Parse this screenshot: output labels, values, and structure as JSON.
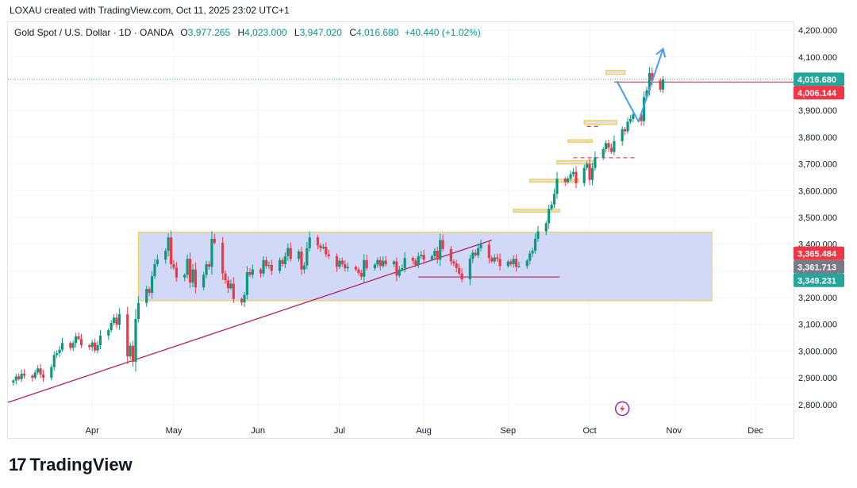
{
  "header": {
    "credit": "LOXAU created with TradingView.com, Oct 11, 2025 23:02 UTC+1"
  },
  "legend": {
    "symbol": "Gold Spot / U.S. Dollar · 1D · OANDA",
    "o_label": "O",
    "o_value": "3,977.265",
    "h_label": "H",
    "h_value": "4,023.000",
    "l_label": "L",
    "l_value": "3,947.020",
    "c_label": "C",
    "c_value": "4,016.680",
    "change": "+40.440 (+1.02%)"
  },
  "branding": {
    "name": "TradingView"
  },
  "colors": {
    "up": "#089981",
    "down": "#f23645",
    "zone_fill": "#c9d2f5",
    "zone_border": "#f2d15b",
    "trendline": "#b0245f",
    "projection": "#4b9bef",
    "current": "#26a69a"
  },
  "chart_data": {
    "type": "candlestick",
    "title": "Gold Spot / U.S. Dollar · 1D · OANDA",
    "xlabel": "",
    "ylabel": "",
    "ylim": [
      2740,
      4230
    ],
    "x_range": [
      "2025-03-01",
      "2025-12-15"
    ],
    "y_ticks": [
      "2,800.000",
      "2,900.000",
      "3,000.000",
      "3,100.000",
      "3,200.000",
      "3,300.000",
      "3,400.000",
      "3,500.000",
      "3,600.000",
      "3,700.000",
      "3,800.000",
      "3,900.000",
      "4,000.000",
      "4,100.000",
      "4,200.000"
    ],
    "x_ticks": [
      {
        "label": "Apr",
        "date": "2025-04-01"
      },
      {
        "label": "May",
        "date": "2025-05-01"
      },
      {
        "label": "Jun",
        "date": "2025-06-01"
      },
      {
        "label": "Jul",
        "date": "2025-07-01"
      },
      {
        "label": "Aug",
        "date": "2025-08-01"
      },
      {
        "label": "Sep",
        "date": "2025-09-01"
      },
      {
        "label": "Oct",
        "date": "2025-10-01"
      },
      {
        "label": "Nov",
        "date": "2025-11-01"
      },
      {
        "label": "Dec",
        "date": "2025-12-01"
      }
    ],
    "start_date": "2025-03-03",
    "closes": [
      2890,
      2905,
      2895,
      2915,
      2908,
      2900,
      2920,
      2935,
      2912,
      2900,
      2940,
      2985,
      2992,
      3005,
      3030,
      3012,
      3030,
      3055,
      3045,
      3022,
      3015,
      3032,
      3002,
      3022,
      3058,
      3078,
      3105,
      3125,
      3098,
      3138,
      2980,
      3020,
      2960,
      3120,
      3180,
      3232,
      3218,
      3280,
      3325,
      3342,
      3375,
      3425,
      3325,
      3312,
      3275,
      3285,
      3345,
      3256,
      3305,
      3238,
      3285,
      3325,
      3315,
      3420,
      3405,
      3290,
      3265,
      3235,
      3252,
      3195,
      3182,
      3210,
      3295,
      3285,
      3305,
      3290,
      3340,
      3318,
      3322,
      3300,
      3340,
      3325,
      3355,
      3385,
      3345,
      3372,
      3305,
      3320,
      3385,
      3425,
      3395,
      3385,
      3390,
      3362,
      3355,
      3315,
      3338,
      3325,
      3310,
      3315,
      3305,
      3292,
      3278,
      3340,
      3310,
      3324,
      3340,
      3318,
      3338,
      3325,
      3335,
      3282,
      3305,
      3310,
      3348,
      3338,
      3322,
      3355,
      3360,
      3342,
      3355,
      3375,
      3342,
      3415,
      3382,
      3335,
      3328,
      3310,
      3290,
      3268,
      3345,
      3368,
      3358,
      3385,
      3398,
      3348,
      3335,
      3350,
      3345,
      3318,
      3335,
      3325,
      3345,
      3315,
      3318,
      3338,
      3365,
      3375,
      3420,
      3448,
      3478,
      3532,
      3548,
      3588,
      3645,
      3632,
      3645,
      3662,
      3670,
      3628,
      3685,
      3700,
      3640,
      3685,
      3725,
      3755,
      3778,
      3760,
      3745,
      3785,
      3830,
      3822,
      3858,
      3868,
      3885,
      3860,
      3950,
      3975,
      4040,
      4012,
      3978,
      4016
    ],
    "trendline": {
      "from": {
        "date": "2025-03-01",
        "value": 2808
      },
      "to": {
        "date": "2025-08-26",
        "value": 3415
      }
    },
    "range_zone": {
      "date_from": "2025-04-18",
      "date_to": "2025-11-15",
      "low": 3188,
      "high": 3445
    },
    "support_line": {
      "date_from": "2025-07-30",
      "date_to": "2025-09-20",
      "value": 3277
    },
    "projection": [
      {
        "date": "2025-10-11",
        "value": 4010
      },
      {
        "date": "2025-10-19",
        "value": 3858
      },
      {
        "date": "2025-10-28",
        "value": 4130
      }
    ],
    "demand_boxes": [
      {
        "date_from": "2025-10-07",
        "date_to": "2025-10-14",
        "low": 4035,
        "high": 4050
      },
      {
        "date_from": "2025-09-29",
        "date_to": "2025-10-11",
        "low": 3848,
        "high": 3862
      },
      {
        "date_from": "2025-09-23",
        "date_to": "2025-10-02",
        "low": 3783,
        "high": 3790
      },
      {
        "date_from": "2025-09-19",
        "date_to": "2025-10-03",
        "low": 3700,
        "high": 3712
      },
      {
        "date_from": "2025-09-09",
        "date_to": "2025-09-27",
        "low": 3632,
        "high": 3642
      },
      {
        "date_from": "2025-09-03",
        "date_to": "2025-09-20",
        "low": 3520,
        "high": 3530
      }
    ],
    "dashed_levels": [
      {
        "date_from": "2025-09-25",
        "date_to": "2025-10-18",
        "value": 3723
      },
      {
        "date_from": "2025-09-30",
        "date_to": "2025-10-05",
        "value": 3840
      }
    ],
    "current_price": 4016.68,
    "price_labels": [
      {
        "text": "4,016.680",
        "value": 4016.68,
        "color": "#26a69a"
      },
      {
        "text": "4,006.144",
        "value": 4006.144,
        "color": "#f23645"
      },
      {
        "text": "3,365.484",
        "value": 3365.484,
        "color": "#f23645"
      },
      {
        "text": "3,361.713",
        "value": 3361.713,
        "color": "#787b86"
      },
      {
        "text": "3,349.231",
        "value": 3349.231,
        "color": "#26a69a"
      }
    ]
  }
}
